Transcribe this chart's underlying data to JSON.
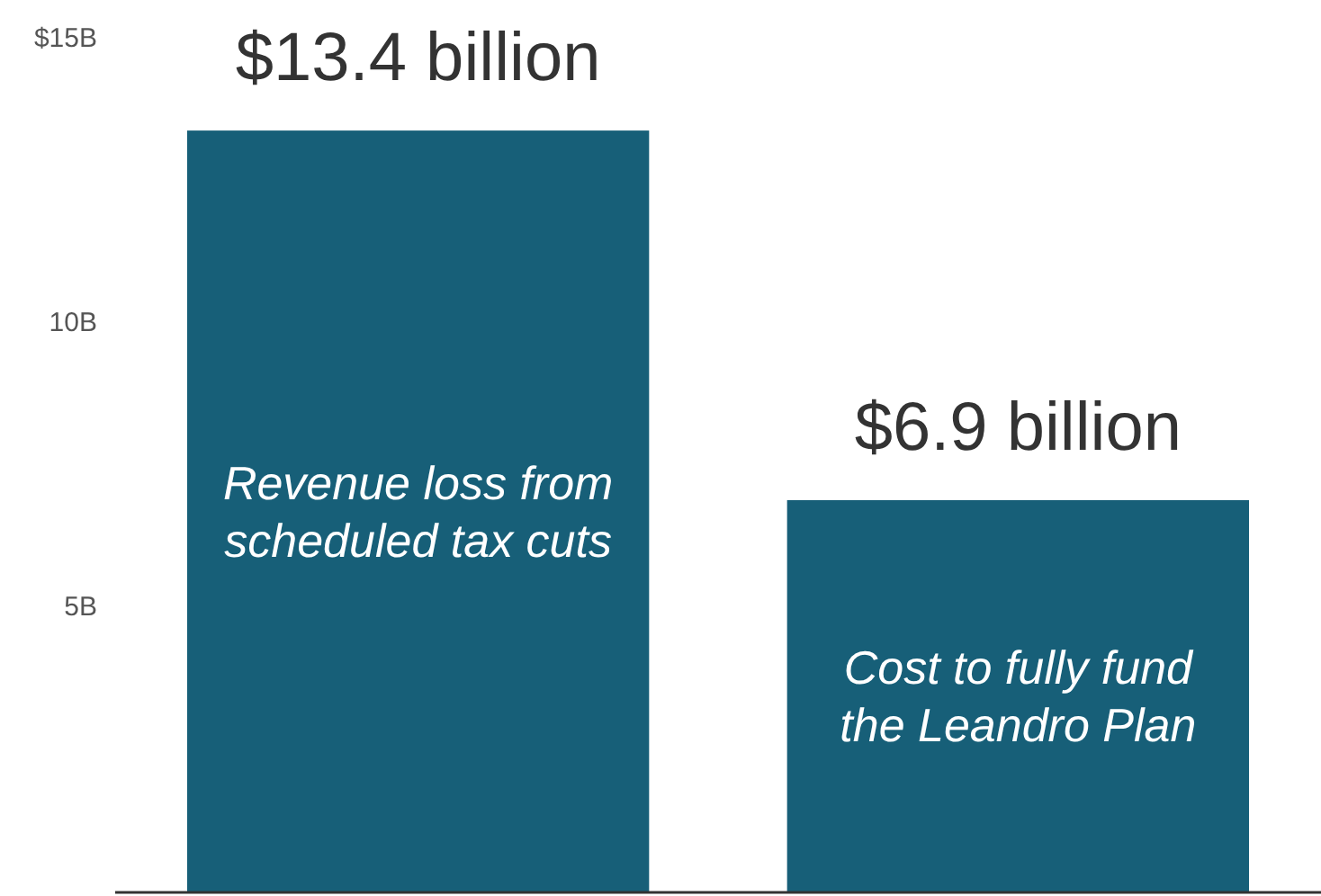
{
  "chart_data": {
    "type": "bar",
    "categories": [
      "Revenue loss from scheduled tax cuts",
      "Cost to fully fund the Leandro Plan"
    ],
    "values": [
      13.4,
      6.9
    ],
    "value_labels": [
      "$13.4 billion",
      "$6.9 billion"
    ],
    "color": "#175f78",
    "ylim": [
      0,
      15
    ],
    "yticks": [
      {
        "value": 5,
        "label": "5B"
      },
      {
        "value": 10,
        "label": "10B"
      },
      {
        "value": 15,
        "label": "$15B"
      }
    ],
    "grid": false
  }
}
